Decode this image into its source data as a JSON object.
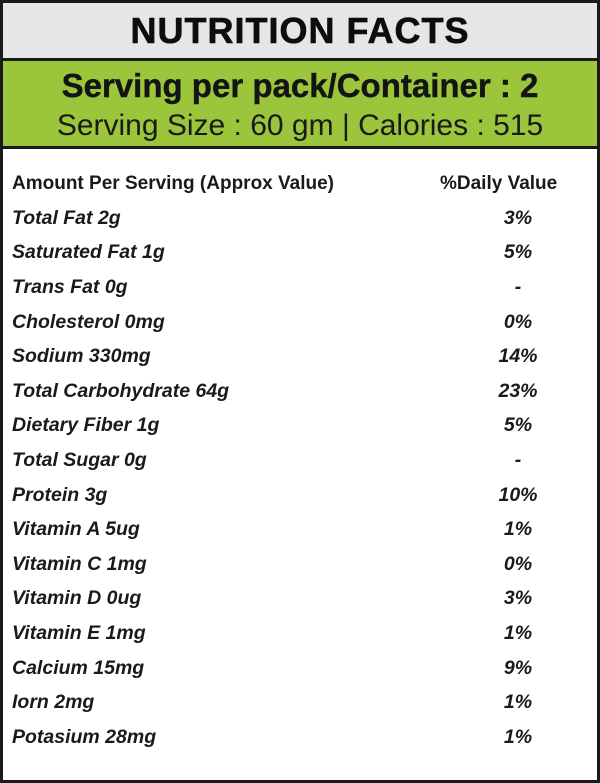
{
  "title": "NUTRITION FACTS",
  "serving": {
    "per_pack": "Serving per pack/Container : 2",
    "size_calories": "Serving Size : 60 gm | Calories : 515"
  },
  "table": {
    "header_amount": "Amount Per Serving (Approx Value)",
    "header_daily": "%Daily Value",
    "rows": [
      {
        "name": "Total Fat 2g",
        "dv": "3%"
      },
      {
        "name": "Saturated Fat 1g",
        "dv": "5%"
      },
      {
        "name": "Trans Fat 0g",
        "dv": "-"
      },
      {
        "name": "Cholesterol 0mg",
        "dv": "0%"
      },
      {
        "name": "Sodium 330mg",
        "dv": "14%"
      },
      {
        "name": "Total Carbohydrate 64g",
        "dv": "23%"
      },
      {
        "name": "Dietary Fiber 1g",
        "dv": "5%"
      },
      {
        "name": "Total Sugar 0g",
        "dv": "-"
      },
      {
        "name": "Protein 3g",
        "dv": "10%"
      },
      {
        "name": "Vitamin A 5ug",
        "dv": "1%"
      },
      {
        "name": "Vitamin C 1mg",
        "dv": "0%"
      },
      {
        "name": "Vitamin D 0ug",
        "dv": "3%"
      },
      {
        "name": "Vitamin E 1mg",
        "dv": "1%"
      },
      {
        "name": "Calcium 15mg",
        "dv": "9%"
      },
      {
        "name": "Iorn 2mg",
        "dv": "1%"
      },
      {
        "name": "Potasium 28mg",
        "dv": "1%"
      }
    ]
  },
  "colors": {
    "title_bg": "#e6e6e6",
    "serving_bg": "#9bc53a",
    "border": "#1a1a1a"
  }
}
